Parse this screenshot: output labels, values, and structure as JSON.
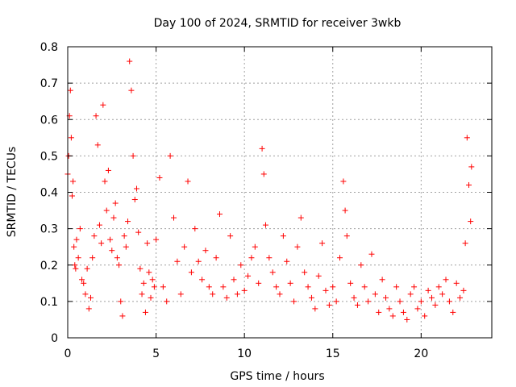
{
  "chart_data": {
    "type": "scatter",
    "title": "Day 100 of 2024, SRMTID for receiver 3wkb",
    "xlabel": "GPS time / hours",
    "ylabel": "SRMTID / TECUs",
    "xlim": [
      0,
      24
    ],
    "ylim": [
      0,
      0.8
    ],
    "xticks": [
      0,
      5,
      10,
      15,
      20
    ],
    "xtick_labels": [
      "0",
      "5",
      "10",
      "15",
      "20"
    ],
    "yticks": [
      0,
      0.1,
      0.2,
      0.3,
      0.4,
      0.5,
      0.6,
      0.7,
      0.8
    ],
    "ytick_labels": [
      "0",
      "0.1",
      "0.2",
      "0.3",
      "0.4",
      "0.5",
      "0.6",
      "0.7",
      "0.8"
    ],
    "grid": true,
    "marker": "plus",
    "series": [
      {
        "name": "SRMTID",
        "color": "#ff0000",
        "x": [
          0.0,
          0.05,
          0.1,
          0.15,
          0.2,
          0.25,
          0.3,
          0.35,
          0.4,
          0.45,
          0.5,
          0.6,
          0.7,
          0.8,
          0.9,
          1.0,
          1.1,
          1.2,
          1.3,
          1.4,
          1.5,
          1.6,
          1.7,
          1.8,
          1.9,
          2.0,
          2.1,
          2.2,
          2.3,
          2.4,
          2.5,
          2.6,
          2.7,
          2.8,
          2.9,
          3.0,
          3.1,
          3.2,
          3.3,
          3.4,
          3.5,
          3.6,
          3.7,
          3.8,
          3.9,
          4.0,
          4.1,
          4.2,
          4.3,
          4.4,
          4.5,
          4.6,
          4.7,
          4.8,
          4.9,
          5.0,
          5.2,
          5.4,
          5.6,
          5.8,
          6.0,
          6.2,
          6.4,
          6.6,
          6.8,
          7.0,
          7.2,
          7.4,
          7.6,
          7.8,
          8.0,
          8.2,
          8.4,
          8.6,
          8.8,
          9.0,
          9.2,
          9.4,
          9.6,
          9.8,
          10.0,
          10.2,
          10.4,
          10.6,
          10.8,
          11.0,
          11.1,
          11.2,
          11.4,
          11.6,
          11.8,
          12.0,
          12.2,
          12.4,
          12.6,
          12.8,
          13.0,
          13.2,
          13.4,
          13.6,
          13.8,
          14.0,
          14.2,
          14.4,
          14.6,
          14.8,
          15.0,
          15.2,
          15.4,
          15.6,
          15.7,
          15.8,
          16.0,
          16.2,
          16.4,
          16.6,
          16.8,
          17.0,
          17.2,
          17.4,
          17.6,
          17.8,
          18.0,
          18.2,
          18.4,
          18.6,
          18.8,
          19.0,
          19.2,
          19.4,
          19.6,
          19.8,
          20.0,
          20.2,
          20.4,
          20.6,
          20.8,
          21.0,
          21.2,
          21.4,
          21.6,
          21.8,
          22.0,
          22.2,
          22.4,
          22.5,
          22.6,
          22.7,
          22.8,
          22.85
        ],
        "y": [
          0.45,
          0.5,
          0.61,
          0.68,
          0.55,
          0.39,
          0.43,
          0.25,
          0.2,
          0.19,
          0.27,
          0.22,
          0.3,
          0.16,
          0.15,
          0.12,
          0.19,
          0.08,
          0.11,
          0.22,
          0.28,
          0.61,
          0.53,
          0.31,
          0.26,
          0.64,
          0.43,
          0.35,
          0.46,
          0.27,
          0.24,
          0.33,
          0.37,
          0.22,
          0.2,
          0.1,
          0.06,
          0.28,
          0.25,
          0.32,
          0.76,
          0.68,
          0.5,
          0.38,
          0.41,
          0.29,
          0.19,
          0.12,
          0.15,
          0.07,
          0.26,
          0.18,
          0.11,
          0.16,
          0.14,
          0.27,
          0.44,
          0.14,
          0.1,
          0.5,
          0.33,
          0.21,
          0.12,
          0.25,
          0.43,
          0.18,
          0.3,
          0.21,
          0.16,
          0.24,
          0.14,
          0.12,
          0.22,
          0.34,
          0.14,
          0.11,
          0.28,
          0.16,
          0.12,
          0.2,
          0.13,
          0.17,
          0.22,
          0.25,
          0.15,
          0.52,
          0.45,
          0.31,
          0.22,
          0.18,
          0.14,
          0.12,
          0.28,
          0.21,
          0.15,
          0.1,
          0.25,
          0.33,
          0.18,
          0.14,
          0.11,
          0.08,
          0.17,
          0.26,
          0.13,
          0.09,
          0.14,
          0.1,
          0.22,
          0.43,
          0.35,
          0.28,
          0.15,
          0.11,
          0.09,
          0.2,
          0.14,
          0.1,
          0.23,
          0.12,
          0.07,
          0.16,
          0.11,
          0.08,
          0.06,
          0.14,
          0.1,
          0.07,
          0.05,
          0.12,
          0.14,
          0.08,
          0.1,
          0.06,
          0.13,
          0.11,
          0.09,
          0.14,
          0.12,
          0.16,
          0.1,
          0.07,
          0.15,
          0.11,
          0.13,
          0.26,
          0.55,
          0.42,
          0.32,
          0.47
        ]
      }
    ]
  }
}
